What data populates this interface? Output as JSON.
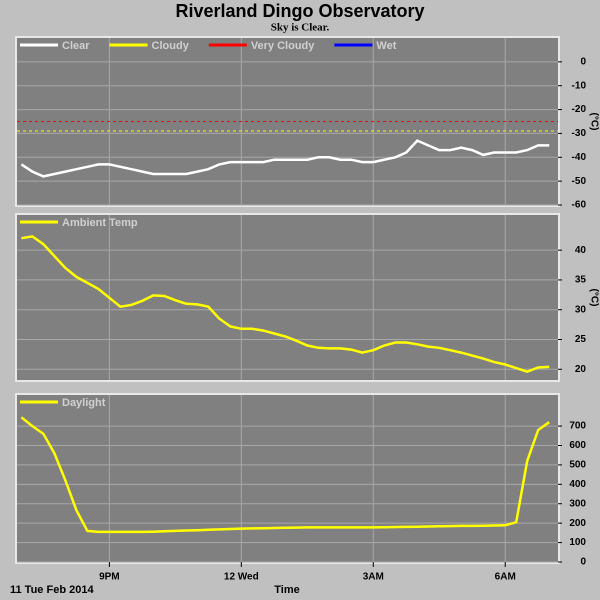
{
  "title": "Riverland Dingo Observatory",
  "subtitle": "Sky is Clear.",
  "date_label": "11 Tue Feb 2014",
  "xlabel": "Time",
  "chart_data": [
    {
      "type": "line",
      "ylabel": "(°C)",
      "x": [
        19.0,
        19.25,
        19.5,
        19.75,
        20.0,
        20.25,
        20.5,
        20.75,
        21.0,
        21.25,
        21.5,
        21.75,
        22.0,
        22.25,
        22.5,
        22.75,
        23.0,
        23.25,
        23.5,
        23.75,
        24.0,
        24.25,
        24.5,
        24.75,
        25.0,
        25.25,
        25.5,
        25.75,
        26.0,
        26.25,
        26.5,
        26.75,
        27.0,
        27.25,
        27.5,
        27.75,
        28.0,
        28.25,
        28.5,
        28.75,
        29.0,
        29.25,
        29.5,
        29.75,
        30.0,
        30.25,
        30.5,
        30.75,
        31.0
      ],
      "xlim": [
        18.9,
        31.2
      ],
      "xticks": [
        21,
        24,
        27,
        30
      ],
      "ylim": [
        -60,
        10
      ],
      "yticks": [
        0,
        -10,
        -20,
        -30,
        -40,
        -50,
        -60
      ],
      "grid": true,
      "series": [
        {
          "name": "Clear",
          "color": "#ffffff",
          "values": [
            -43,
            -46,
            -48,
            -47,
            -46,
            -45,
            -44,
            -43,
            -43,
            -44,
            -45,
            -46,
            -47,
            -47,
            -47,
            -47,
            -46,
            -45,
            -43,
            -42,
            -42,
            -42,
            -42,
            -41,
            -41,
            -41,
            -41,
            -40,
            -40,
            -41,
            -41,
            -42,
            -42,
            -41,
            -40,
            -38,
            -33,
            -35,
            -37,
            -37,
            -36,
            -37,
            -39,
            -38,
            -38,
            -38,
            -37,
            -35,
            -35
          ]
        },
        {
          "name": "Cloudy",
          "color": "#ffff00",
          "threshold": -29
        },
        {
          "name": "Very Cloudy",
          "color": "#ff0000",
          "threshold": -25
        },
        {
          "name": "Wet",
          "color": "#0000ff"
        }
      ]
    },
    {
      "type": "line",
      "ylabel": "(°C)",
      "x": [
        19.0,
        19.25,
        19.5,
        19.75,
        20.0,
        20.25,
        20.5,
        20.75,
        21.0,
        21.25,
        21.5,
        21.75,
        22.0,
        22.25,
        22.5,
        22.75,
        23.0,
        23.25,
        23.5,
        23.75,
        24.0,
        24.25,
        24.5,
        24.75,
        25.0,
        25.25,
        25.5,
        25.75,
        26.0,
        26.25,
        26.5,
        26.75,
        27.0,
        27.25,
        27.5,
        27.75,
        28.0,
        28.25,
        28.5,
        28.75,
        29.0,
        29.25,
        29.5,
        29.75,
        30.0,
        30.25,
        30.5,
        30.75,
        31.0
      ],
      "xlim": [
        18.9,
        31.2
      ],
      "xticks": [
        21,
        24,
        27,
        30
      ],
      "ylim": [
        18.2,
        45.9
      ],
      "yticks": [
        20,
        25,
        30,
        35,
        40
      ],
      "grid": true,
      "series": [
        {
          "name": "Ambient Temp",
          "color": "#ffff00",
          "values": [
            42,
            42.3,
            41,
            39,
            37,
            35.5,
            34.5,
            33.5,
            32,
            30.5,
            30.8,
            31.5,
            32.4,
            32.3,
            31.6,
            31,
            30.9,
            30.5,
            28.5,
            27.2,
            26.8,
            26.8,
            26.5,
            26,
            25.5,
            24.8,
            24,
            23.6,
            23.5,
            23.5,
            23.3,
            22.8,
            23.2,
            24,
            24.5,
            24.5,
            24.2,
            23.8,
            23.6,
            23.2,
            22.8,
            22.3,
            21.8,
            21.2,
            20.8,
            20.2,
            19.6,
            20.3,
            20.4
          ]
        },
        {
          "name": "",
          "color": "#ffff00"
        }
      ]
    },
    {
      "type": "line",
      "x": [
        19.0,
        19.25,
        19.5,
        19.75,
        20.0,
        20.25,
        20.5,
        20.75,
        21.0,
        21.25,
        21.5,
        21.75,
        22.0,
        22.25,
        22.5,
        22.75,
        23.0,
        23.25,
        23.5,
        23.75,
        24.0,
        24.25,
        24.5,
        24.75,
        25.0,
        25.25,
        25.5,
        25.75,
        26.0,
        26.25,
        26.5,
        26.75,
        27.0,
        27.25,
        27.5,
        27.75,
        28.0,
        28.25,
        28.5,
        28.75,
        29.0,
        29.25,
        29.5,
        29.75,
        30.0,
        30.25,
        30.5,
        30.75,
        31.0
      ],
      "xlim": [
        18.9,
        31.2
      ],
      "xticks": [
        {
          "value": 21,
          "label": "9PM"
        },
        {
          "value": 24,
          "label": "12 Wed"
        },
        {
          "value": 27,
          "label": "3AM"
        },
        {
          "value": 30,
          "label": "6AM"
        }
      ],
      "ylim": [
        0,
        860
      ],
      "yticks": [
        0,
        100,
        200,
        300,
        400,
        500,
        600,
        700
      ],
      "grid": true,
      "series": [
        {
          "name": "Daylight",
          "color": "#ffff00",
          "values": [
            745,
            700,
            660,
            560,
            420,
            267,
            160,
            155,
            155,
            155,
            155,
            155,
            156,
            158,
            160,
            162,
            164,
            166,
            168,
            170,
            172,
            173,
            174,
            175,
            176,
            177,
            178,
            178,
            178,
            178,
            178,
            178,
            178,
            179,
            180,
            181,
            182,
            183,
            184,
            185,
            186,
            186,
            187,
            188,
            189,
            205,
            520,
            680,
            720
          ]
        }
      ]
    }
  ]
}
